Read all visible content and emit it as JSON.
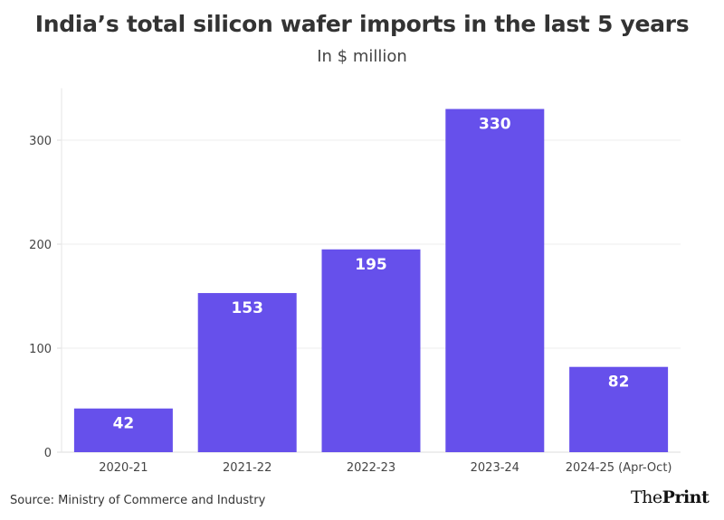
{
  "chart_data": {
    "type": "bar",
    "title": "India’s total silicon wafer imports in the last 5 years",
    "subtitle": "In $ million",
    "categories": [
      "2020-21",
      "2021-22",
      "2022-23",
      "2023-24",
      "2024-25 (Apr-Oct)"
    ],
    "values": [
      42,
      153,
      195,
      330,
      82
    ],
    "data_labels": [
      "42",
      "153",
      "195",
      "330",
      "82"
    ],
    "ylim": [
      0,
      350
    ],
    "yticks": [
      0,
      100,
      200,
      300
    ],
    "ytick_labels": [
      "0",
      "100",
      "200",
      "300"
    ],
    "grid": true,
    "bar_color": "#6650eb",
    "label_color": "#ffffff"
  },
  "footer": {
    "source": "Source: Ministry of Commerce and Industry",
    "logo_part1": "The",
    "logo_part2": "Print"
  }
}
